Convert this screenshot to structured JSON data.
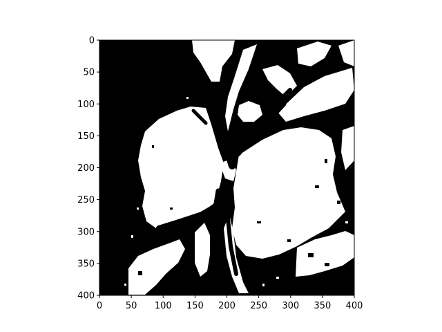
{
  "chart_data": {
    "type": "heatmap",
    "colormap": "binary (white = 1, black = 0)",
    "width": 400,
    "height": 400,
    "xlim": [
      0,
      400
    ],
    "ylim": [
      400,
      0
    ],
    "xticks": [
      0,
      50,
      100,
      150,
      200,
      250,
      300,
      350,
      400
    ],
    "yticks": [
      0,
      50,
      100,
      150,
      200,
      250,
      300,
      350,
      400
    ],
    "xtick_labels": [
      "0",
      "50",
      "100",
      "150",
      "200",
      "250",
      "300",
      "350",
      "400"
    ],
    "ytick_labels": [
      "0",
      "50",
      "100",
      "150",
      "200",
      "250",
      "300",
      "350",
      "400"
    ],
    "title": "",
    "xlabel": "",
    "ylabel": "",
    "colors": {
      "background": "#000000",
      "foreground": "#ffffff",
      "axes": "#000000"
    }
  }
}
